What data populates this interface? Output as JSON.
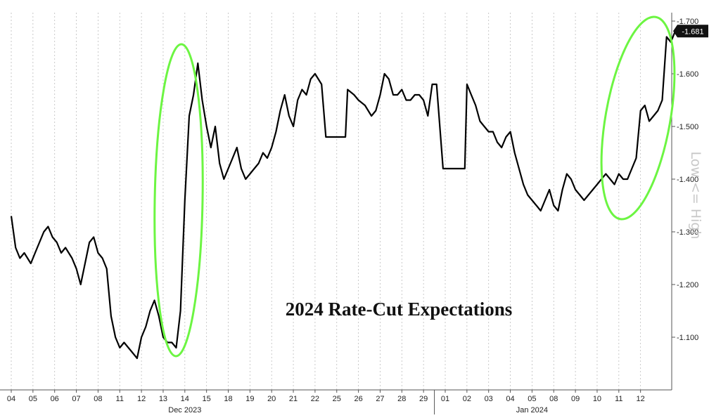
{
  "chart_data": {
    "type": "line",
    "title": "2024 Rate-Cut Expectations",
    "xlabel": "",
    "ylabel": "Low <= High",
    "y_axis_side": "right",
    "ylim": [
      -1.0,
      -1.7
    ],
    "yticks": [
      -1.1,
      -1.2,
      -1.3,
      -1.4,
      -1.5,
      -1.6,
      -1.7
    ],
    "ytick_labels": [
      "-1.100",
      "-1.200",
      "-1.300",
      "-1.400",
      "-1.500",
      "-1.600",
      "-1.700"
    ],
    "grid": "vertical-dashed",
    "x_ticks": [
      "04",
      "05",
      "06",
      "07",
      "08",
      "11",
      "12",
      "13",
      "14",
      "15",
      "18",
      "19",
      "20",
      "21",
      "22",
      "25",
      "26",
      "27",
      "28",
      "29",
      "01",
      "02",
      "03",
      "04",
      "05",
      "08",
      "09",
      "10",
      "11",
      "12"
    ],
    "month_labels": [
      {
        "label": "Dec 2023",
        "tick_index": 8
      },
      {
        "label": "Jan 2024",
        "tick_index": 24
      }
    ],
    "last_value_label": "-1.681",
    "series": [
      {
        "color": "#000000",
        "points": [
          [
            0.0,
            -1.33
          ],
          [
            0.2,
            -1.27
          ],
          [
            0.4,
            -1.25
          ],
          [
            0.6,
            -1.26
          ],
          [
            0.9,
            -1.24
          ],
          [
            1.1,
            -1.26
          ],
          [
            1.3,
            -1.28
          ],
          [
            1.5,
            -1.3
          ],
          [
            1.7,
            -1.31
          ],
          [
            1.9,
            -1.29
          ],
          [
            2.1,
            -1.28
          ],
          [
            2.3,
            -1.26
          ],
          [
            2.5,
            -1.27
          ],
          [
            2.8,
            -1.25
          ],
          [
            3.0,
            -1.23
          ],
          [
            3.2,
            -1.2
          ],
          [
            3.4,
            -1.24
          ],
          [
            3.6,
            -1.28
          ],
          [
            3.8,
            -1.29
          ],
          [
            4.0,
            -1.26
          ],
          [
            4.2,
            -1.25
          ],
          [
            4.4,
            -1.23
          ],
          [
            4.6,
            -1.14
          ],
          [
            4.8,
            -1.1
          ],
          [
            5.0,
            -1.08
          ],
          [
            5.2,
            -1.09
          ],
          [
            5.4,
            -1.08
          ],
          [
            5.6,
            -1.07
          ],
          [
            5.8,
            -1.06
          ],
          [
            6.0,
            -1.1
          ],
          [
            6.2,
            -1.12
          ],
          [
            6.4,
            -1.15
          ],
          [
            6.6,
            -1.17
          ],
          [
            6.8,
            -1.14
          ],
          [
            7.0,
            -1.1
          ],
          [
            7.2,
            -1.09
          ],
          [
            7.4,
            -1.09
          ],
          [
            7.6,
            -1.08
          ],
          [
            7.8,
            -1.15
          ],
          [
            8.0,
            -1.36
          ],
          [
            8.2,
            -1.52
          ],
          [
            8.4,
            -1.56
          ],
          [
            8.6,
            -1.62
          ],
          [
            8.8,
            -1.55
          ],
          [
            9.0,
            -1.5
          ],
          [
            9.2,
            -1.46
          ],
          [
            9.4,
            -1.5
          ],
          [
            9.6,
            -1.43
          ],
          [
            9.8,
            -1.4
          ],
          [
            10.0,
            -1.42
          ],
          [
            10.2,
            -1.44
          ],
          [
            10.4,
            -1.46
          ],
          [
            10.6,
            -1.42
          ],
          [
            10.8,
            -1.4
          ],
          [
            11.0,
            -1.41
          ],
          [
            11.2,
            -1.42
          ],
          [
            11.4,
            -1.43
          ],
          [
            11.6,
            -1.45
          ],
          [
            11.8,
            -1.44
          ],
          [
            12.0,
            -1.46
          ],
          [
            12.2,
            -1.49
          ],
          [
            12.4,
            -1.53
          ],
          [
            12.6,
            -1.56
          ],
          [
            12.8,
            -1.52
          ],
          [
            13.0,
            -1.5
          ],
          [
            13.2,
            -1.55
          ],
          [
            13.4,
            -1.57
          ],
          [
            13.6,
            -1.56
          ],
          [
            13.8,
            -1.59
          ],
          [
            14.0,
            -1.6
          ],
          [
            14.3,
            -1.58
          ],
          [
            14.5,
            -1.48
          ],
          [
            15.0,
            -1.48
          ],
          [
            15.4,
            -1.48
          ],
          [
            15.5,
            -1.57
          ],
          [
            15.8,
            -1.56
          ],
          [
            16.0,
            -1.55
          ],
          [
            16.3,
            -1.54
          ],
          [
            16.6,
            -1.52
          ],
          [
            16.8,
            -1.53
          ],
          [
            17.0,
            -1.56
          ],
          [
            17.2,
            -1.6
          ],
          [
            17.4,
            -1.59
          ],
          [
            17.6,
            -1.56
          ],
          [
            17.8,
            -1.56
          ],
          [
            18.0,
            -1.57
          ],
          [
            18.2,
            -1.55
          ],
          [
            18.4,
            -1.55
          ],
          [
            18.6,
            -1.56
          ],
          [
            18.8,
            -1.56
          ],
          [
            19.0,
            -1.55
          ],
          [
            19.2,
            -1.52
          ],
          [
            19.4,
            -1.58
          ],
          [
            19.6,
            -1.58
          ],
          [
            19.9,
            -1.42
          ],
          [
            20.4,
            -1.42
          ],
          [
            20.9,
            -1.42
          ],
          [
            21.0,
            -1.58
          ],
          [
            21.2,
            -1.56
          ],
          [
            21.4,
            -1.54
          ],
          [
            21.6,
            -1.51
          ],
          [
            21.8,
            -1.5
          ],
          [
            22.0,
            -1.49
          ],
          [
            22.2,
            -1.49
          ],
          [
            22.4,
            -1.47
          ],
          [
            22.6,
            -1.46
          ],
          [
            22.8,
            -1.48
          ],
          [
            23.0,
            -1.49
          ],
          [
            23.2,
            -1.45
          ],
          [
            23.4,
            -1.42
          ],
          [
            23.6,
            -1.39
          ],
          [
            23.8,
            -1.37
          ],
          [
            24.0,
            -1.36
          ],
          [
            24.2,
            -1.35
          ],
          [
            24.4,
            -1.34
          ],
          [
            24.6,
            -1.36
          ],
          [
            24.8,
            -1.38
          ],
          [
            25.0,
            -1.35
          ],
          [
            25.2,
            -1.34
          ],
          [
            25.4,
            -1.38
          ],
          [
            25.6,
            -1.41
          ],
          [
            25.8,
            -1.4
          ],
          [
            26.0,
            -1.38
          ],
          [
            26.2,
            -1.37
          ],
          [
            26.4,
            -1.36
          ],
          [
            26.6,
            -1.37
          ],
          [
            26.8,
            -1.38
          ],
          [
            27.0,
            -1.39
          ],
          [
            27.2,
            -1.4
          ],
          [
            27.4,
            -1.41
          ],
          [
            27.6,
            -1.4
          ],
          [
            27.8,
            -1.39
          ],
          [
            28.0,
            -1.41
          ],
          [
            28.2,
            -1.4
          ],
          [
            28.4,
            -1.4
          ],
          [
            28.6,
            -1.42
          ],
          [
            28.8,
            -1.44
          ],
          [
            29.0,
            -1.53
          ],
          [
            29.2,
            -1.54
          ],
          [
            29.4,
            -1.51
          ],
          [
            29.6,
            -1.52
          ],
          [
            29.8,
            -1.53
          ],
          [
            30.0,
            -1.55
          ],
          [
            30.2,
            -1.67
          ],
          [
            30.4,
            -1.66
          ],
          [
            30.6,
            -1.681
          ]
        ]
      }
    ]
  }
}
